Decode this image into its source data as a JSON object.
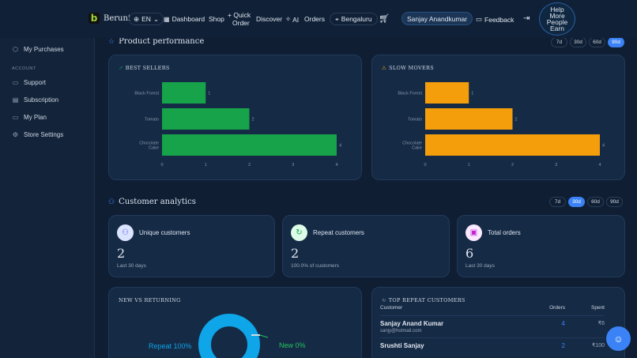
{
  "nav": {
    "brand": "Beruni",
    "lang": "EN",
    "links": [
      "Dashboard",
      "Shop",
      "Quick",
      "Order",
      "Discover",
      "AI",
      "Orders"
    ],
    "location": "Bengaluru",
    "user": "Sanjay Anandkumar",
    "feedback": "Feedback",
    "earn_lines": [
      "Help",
      "More",
      "People",
      "Earn"
    ]
  },
  "sidebar": {
    "top_item": "My Purchases",
    "account_heading": "ACCOUNT",
    "items": [
      "Support",
      "Subscription",
      "My Plan",
      "Store Settings"
    ]
  },
  "product_performance": {
    "title": "Product performance",
    "pills": [
      "7d",
      "30d",
      "60d",
      "90d"
    ],
    "active": "90d"
  },
  "best_sellers": {
    "title": "BEST SELLERS",
    "color": "#16a34a",
    "chart_data": {
      "type": "bar",
      "orientation": "horizontal",
      "categories": [
        "Black Forest",
        "Tomato",
        "Chocolate Cake"
      ],
      "values": [
        1,
        2,
        4
      ],
      "xlim": [
        0,
        4
      ],
      "xticks": [
        "0",
        "1",
        "2",
        "3",
        "4"
      ]
    }
  },
  "slow_movers": {
    "title": "SLOW MOVERS",
    "color": "#f59e0b",
    "chart_data": {
      "type": "bar",
      "orientation": "horizontal",
      "categories": [
        "Black Forest",
        "Tomato",
        "Chocolate Cake"
      ],
      "values": [
        1,
        2,
        4
      ],
      "xlim": [
        0,
        4
      ],
      "xticks": [
        "0",
        "1",
        "2",
        "3",
        "4"
      ]
    }
  },
  "customer_analytics": {
    "title": "Customer analytics",
    "pills": [
      "7d",
      "30d",
      "60d",
      "90d"
    ],
    "active": "30d"
  },
  "stats": [
    {
      "label": "Unique customers",
      "value": "2",
      "sub": "Last 30 days",
      "icon": "users-icon",
      "color": "#a5b4fc",
      "bg": "#dbe4ff"
    },
    {
      "label": "Repeat customers",
      "value": "2",
      "sub": "100.0% of customers",
      "icon": "refresh-icon",
      "color": "#16a34a",
      "bg": "#dcfce7"
    },
    {
      "label": "Total orders",
      "value": "6",
      "sub": "Last 30 days",
      "icon": "bag-icon",
      "color": "#c026d3",
      "bg": "#fae8ff"
    }
  ],
  "new_vs_returning": {
    "title": "NEW VS RETURNING",
    "repeat_label": "Repeat 100%",
    "new_label": "New 0%",
    "chart_data": {
      "type": "pie",
      "categories": [
        "Repeat",
        "New"
      ],
      "values": [
        100,
        0
      ]
    },
    "repeat_color": "#0ea5e9",
    "new_color": "#22c55e"
  },
  "top_repeat": {
    "title": "TOP REPEAT CUSTOMERS",
    "columns": [
      "Customer",
      "Orders",
      "Spent"
    ],
    "rows": [
      {
        "name": "Sanjay Anand Kumar",
        "email": "sanjy@hotmail.com",
        "orders": "4",
        "spent": "₹6"
      },
      {
        "name": "Srushti Sanjay",
        "email": "",
        "orders": "2",
        "spent": "₹100"
      }
    ]
  }
}
